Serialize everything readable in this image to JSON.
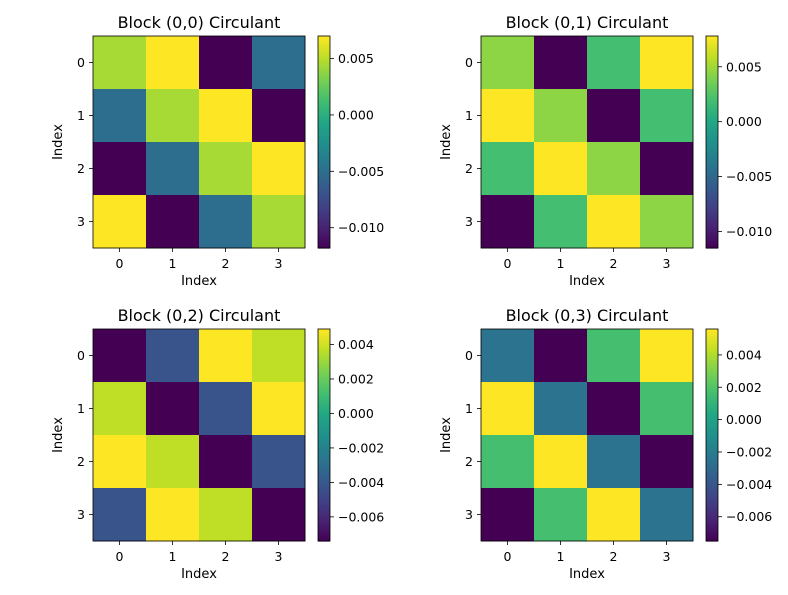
{
  "chart_data": [
    {
      "type": "heatmap",
      "title": "Block (0,0) Circulant",
      "xlabel": "Index",
      "ylabel": "Index",
      "x_ticks": [
        "0",
        "1",
        "2",
        "3"
      ],
      "y_ticks": [
        "0",
        "1",
        "2",
        "3"
      ],
      "values": [
        [
          0.0045,
          0.007,
          -0.0118,
          -0.005
        ],
        [
          -0.005,
          0.0045,
          0.007,
          -0.0118
        ],
        [
          -0.0118,
          -0.005,
          0.0045,
          0.007
        ],
        [
          0.007,
          -0.0118,
          -0.005,
          0.0045
        ]
      ],
      "vmin": -0.0118,
      "vmax": 0.007,
      "colorbar_ticks": [
        "0.005",
        "0.000",
        "−0.005",
        "−0.010"
      ],
      "colorbar_tick_values": [
        0.005,
        0.0,
        -0.005,
        -0.01
      ],
      "colormap": "viridis"
    },
    {
      "type": "heatmap",
      "title": "Block (0,1) Circulant",
      "xlabel": "Index",
      "ylabel": "Index",
      "x_ticks": [
        "0",
        "1",
        "2",
        "3"
      ],
      "y_ticks": [
        "0",
        "1",
        "2",
        "3"
      ],
      "values": [
        [
          0.0045,
          -0.0115,
          0.002,
          0.0078
        ],
        [
          0.0078,
          0.0045,
          -0.0115,
          0.002
        ],
        [
          0.002,
          0.0078,
          0.0045,
          -0.0115
        ],
        [
          -0.0115,
          0.002,
          0.0078,
          0.0045
        ]
      ],
      "vmin": -0.0115,
      "vmax": 0.0078,
      "colorbar_ticks": [
        "0.005",
        "0.000",
        "−0.005",
        "−0.010"
      ],
      "colorbar_tick_values": [
        0.005,
        0.0,
        -0.005,
        -0.01
      ],
      "colormap": "viridis"
    },
    {
      "type": "heatmap",
      "title": "Block (0,2) Circulant",
      "xlabel": "Index",
      "ylabel": "Index",
      "x_ticks": [
        "0",
        "1",
        "2",
        "3"
      ],
      "y_ticks": [
        "0",
        "1",
        "2",
        "3"
      ],
      "values": [
        [
          -0.0074,
          -0.0042,
          0.0049,
          0.0037
        ],
        [
          0.0037,
          -0.0074,
          -0.0042,
          0.0049
        ],
        [
          0.0049,
          0.0037,
          -0.0074,
          -0.0042
        ],
        [
          -0.0042,
          0.0049,
          0.0037,
          -0.0074
        ]
      ],
      "vmin": -0.0074,
      "vmax": 0.0049,
      "colorbar_ticks": [
        "0.004",
        "0.002",
        "0.000",
        "−0.002",
        "−0.004",
        "−0.006"
      ],
      "colorbar_tick_values": [
        0.004,
        0.002,
        0.0,
        -0.002,
        -0.004,
        -0.006
      ],
      "colormap": "viridis"
    },
    {
      "type": "heatmap",
      "title": "Block (0,3) Circulant",
      "xlabel": "Index",
      "ylabel": "Index",
      "x_ticks": [
        "0",
        "1",
        "2",
        "3"
      ],
      "y_ticks": [
        "0",
        "1",
        "2",
        "3"
      ],
      "values": [
        [
          -0.0025,
          -0.0075,
          0.0017,
          0.0056
        ],
        [
          0.0056,
          -0.0025,
          -0.0075,
          0.0017
        ],
        [
          0.0017,
          0.0056,
          -0.0025,
          -0.0075
        ],
        [
          -0.0075,
          0.0017,
          0.0056,
          -0.0025
        ]
      ],
      "vmin": -0.0075,
      "vmax": 0.0056,
      "colorbar_ticks": [
        "0.004",
        "0.002",
        "0.000",
        "−0.002",
        "−0.004",
        "−0.006"
      ],
      "colorbar_tick_values": [
        0.004,
        0.002,
        0.0,
        -0.002,
        -0.004,
        -0.006
      ],
      "colormap": "viridis"
    }
  ]
}
